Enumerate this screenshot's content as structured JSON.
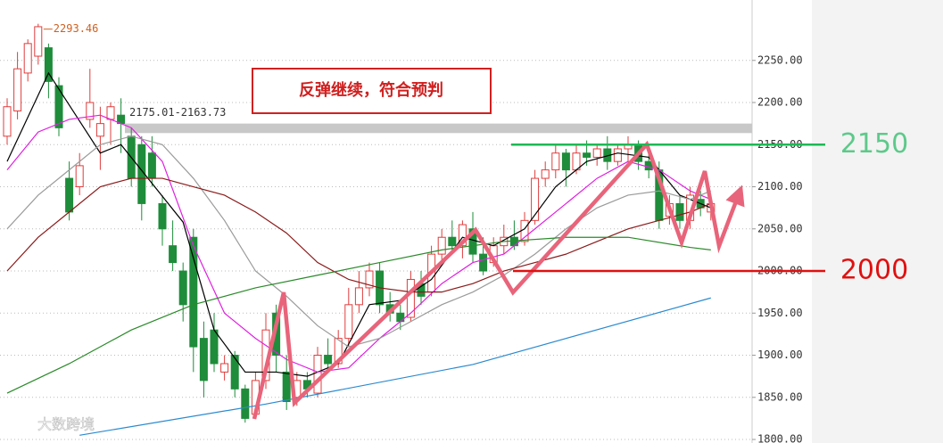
{
  "chart_data": {
    "type": "candlestick",
    "open": [
      2160,
      2190,
      2235,
      2255,
      2265,
      2220,
      2110,
      2100,
      2180,
      2160,
      2180,
      2185,
      2160,
      2150,
      2140,
      2080,
      2030,
      2000,
      2040,
      1920,
      1930,
      1880,
      1900,
      1860,
      1830,
      1870,
      1950,
      1880,
      1850,
      1870,
      1855,
      1900,
      1890,
      1920,
      1960,
      1980,
      2000,
      1960,
      1950,
      1945,
      1985,
      1975,
      2020,
      2040,
      2030,
      2050,
      2020,
      2010,
      2030,
      2040,
      2035,
      2060,
      2110,
      2120,
      2140,
      2120,
      2140,
      2135,
      2145,
      2130,
      2145,
      2150,
      2130,
      2120,
      2065,
      2080,
      2060,
      2085,
      2070
    ],
    "high": [
      2205,
      2260,
      2275,
      2293.46,
      2270,
      2230,
      2130,
      2140,
      2240,
      2195,
      2200,
      2205,
      2170,
      2160,
      2160,
      2090,
      2060,
      2010,
      2050,
      1940,
      1950,
      1900,
      1905,
      1865,
      1880,
      1950,
      1960,
      1900,
      1880,
      1880,
      1910,
      1920,
      1930,
      1980,
      2000,
      2010,
      2010,
      1975,
      1960,
      2000,
      2000,
      2030,
      2050,
      2060,
      2060,
      2070,
      2040,
      2040,
      2055,
      2060,
      2070,
      2120,
      2130,
      2150,
      2145,
      2150,
      2155,
      2150,
      2160,
      2150,
      2160,
      2155,
      2140,
      2130,
      2090,
      2090,
      2100,
      2095,
      2085
    ],
    "low": [
      2150,
      2180,
      2225,
      2245,
      2205,
      2160,
      2060,
      2090,
      2170,
      2120,
      2150,
      2140,
      2100,
      2060,
      2100,
      2030,
      2000,
      1940,
      1880,
      1850,
      1880,
      1870,
      1850,
      1820,
      1825,
      1860,
      1880,
      1835,
      1840,
      1850,
      1850,
      1880,
      1885,
      1910,
      1950,
      1970,
      1950,
      1940,
      1930,
      1940,
      1960,
      1970,
      2010,
      2020,
      2015,
      2010,
      1995,
      2005,
      2020,
      2025,
      2030,
      2055,
      2100,
      2110,
      2100,
      2115,
      2125,
      2125,
      2120,
      2125,
      2130,
      2120,
      2110,
      2050,
      2055,
      2050,
      2050,
      2065,
      2060
    ],
    "close": [
      2195,
      2240,
      2270,
      2290,
      2225,
      2170,
      2070,
      2125,
      2200,
      2175,
      2195,
      2175,
      2110,
      2080,
      2110,
      2050,
      2010,
      1960,
      1910,
      1870,
      1890,
      1890,
      1860,
      1825,
      1870,
      1930,
      1900,
      1845,
      1870,
      1860,
      1900,
      1890,
      1920,
      1960,
      1980,
      2000,
      1960,
      1950,
      1940,
      1990,
      1970,
      2020,
      2040,
      2030,
      2055,
      2020,
      2000,
      2030,
      2040,
      2030,
      2060,
      2110,
      2120,
      2140,
      2120,
      2140,
      2135,
      2145,
      2130,
      2145,
      2150,
      2130,
      2120,
      2060,
      2080,
      2060,
      2090,
      2075,
      2080
    ],
    "up_color": "#e03c3c",
    "down_color": "#1e8c3a",
    "series": [
      {
        "color": "#000000",
        "x": [
          0,
          4,
          9,
          11,
          17,
          20,
          23,
          26,
          29,
          32,
          35,
          38,
          41,
          44,
          47,
          50,
          53,
          56,
          59,
          62,
          65,
          68
        ],
        "values": [
          2130,
          2235,
          2140,
          2150,
          2058,
          1930,
          1880,
          1880,
          1875,
          1890,
          1960,
          1965,
          1990,
          2040,
          2030,
          2050,
          2100,
          2130,
          2140,
          2135,
          2090,
          2075
        ]
      },
      {
        "color": "#e020e0",
        "x": [
          0,
          3,
          6,
          9,
          12,
          15,
          18,
          21,
          24,
          27,
          30,
          33,
          36,
          39,
          42,
          45,
          48,
          51,
          54,
          57,
          60,
          63,
          66,
          68
        ],
        "values": [
          2120,
          2165,
          2180,
          2185,
          2170,
          2130,
          2030,
          1950,
          1920,
          1895,
          1880,
          1885,
          1920,
          1950,
          1985,
          2010,
          2020,
          2050,
          2080,
          2110,
          2130,
          2120,
          2095,
          2085
        ]
      },
      {
        "color": "#9a9a9a",
        "x": [
          0,
          3,
          6,
          9,
          12,
          15,
          18,
          21,
          24,
          27,
          30,
          33,
          36,
          39,
          42,
          45,
          48,
          51,
          54,
          57,
          60,
          63,
          66,
          68
        ],
        "values": [
          2050,
          2090,
          2120,
          2150,
          2160,
          2150,
          2110,
          2060,
          2000,
          1970,
          1935,
          1910,
          1920,
          1940,
          1960,
          1975,
          1995,
          2020,
          2050,
          2075,
          2090,
          2095,
          2085,
          2095
        ]
      },
      {
        "color": "#8b1a1a",
        "x": [
          0,
          3,
          6,
          9,
          12,
          15,
          18,
          21,
          24,
          27,
          30,
          33,
          36,
          39,
          42,
          45,
          48,
          51,
          54,
          57,
          60,
          63,
          66,
          68
        ],
        "values": [
          2000,
          2040,
          2070,
          2100,
          2110,
          2110,
          2100,
          2090,
          2070,
          2045,
          2010,
          1990,
          1980,
          1975,
          1975,
          1985,
          2000,
          2010,
          2020,
          2035,
          2050,
          2060,
          2070,
          2080
        ]
      },
      {
        "color": "#2a8a2a",
        "x": [
          0,
          6,
          12,
          18,
          24,
          30,
          36,
          42,
          48,
          54,
          60,
          66,
          68
        ],
        "values": [
          1855,
          1890,
          1930,
          1960,
          1980,
          1995,
          2010,
          2025,
          2035,
          2040,
          2040,
          2028,
          2025
        ]
      },
      {
        "color": "#2a8ad0",
        "x": [
          7,
          25,
          45,
          68
        ],
        "values": [
          1805,
          1842,
          1889,
          1968
        ]
      }
    ],
    "ylim": [
      1795.8,
      2321.7
    ],
    "yticks": [
      {
        "value": 1800,
        "label": "1800.00"
      },
      {
        "value": 1850,
        "label": "1850.00"
      },
      {
        "value": 1900,
        "label": "1900.00"
      },
      {
        "value": 1950,
        "label": "1950.00"
      },
      {
        "value": 2000,
        "label": "2000.00"
      },
      {
        "value": 2050,
        "label": "2050.00"
      },
      {
        "value": 2100,
        "label": "2100.00"
      },
      {
        "value": 2150,
        "label": "2150.00"
      },
      {
        "value": 2200,
        "label": "2200.00"
      },
      {
        "value": 2250,
        "label": "2250.00"
      }
    ],
    "grid": true,
    "band": {
      "label": "2175.01-2163.73",
      "range": [
        2163.73,
        2175.01
      ]
    },
    "levels": [
      {
        "value": 2150,
        "color": "#1db954",
        "label_color": "#5dc98a"
      },
      {
        "value": 2000,
        "color": "#e01010",
        "label_color": "#e01010"
      }
    ],
    "annotation": "反弹继续，符合预判",
    "watermark": "大数跨境"
  }
}
